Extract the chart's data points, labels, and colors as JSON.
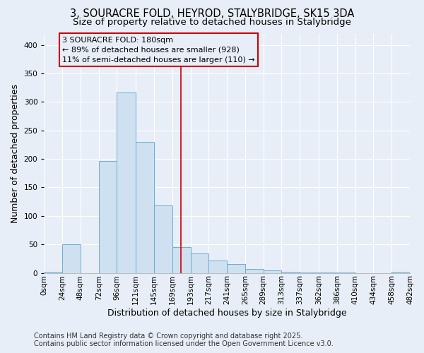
{
  "title": "3, SOURACRE FOLD, HEYROD, STALYBRIDGE, SK15 3DA",
  "subtitle": "Size of property relative to detached houses in Stalybridge",
  "xlabel": "Distribution of detached houses by size in Stalybridge",
  "ylabel": "Number of detached properties",
  "bar_edges": [
    0,
    24,
    48,
    72,
    96,
    121,
    145,
    169,
    193,
    217,
    241,
    265,
    289,
    313,
    337,
    362,
    386,
    410,
    434,
    458,
    482
  ],
  "bar_heights": [
    2,
    50,
    0,
    197,
    317,
    230,
    118,
    45,
    34,
    22,
    15,
    7,
    4,
    2,
    1,
    1,
    1,
    0,
    0,
    2
  ],
  "bar_color": "#cfe0f0",
  "bar_edge_color": "#6aaed6",
  "vline_x": 180,
  "vline_color": "#cc0000",
  "annotation_title": "3 SOURACRE FOLD: 180sqm",
  "annotation_left": "← 89% of detached houses are smaller (928)",
  "annotation_right": "11% of semi-detached houses are larger (110) →",
  "annotation_box_edge_color": "#cc0000",
  "ylim": [
    0,
    420
  ],
  "yticks": [
    0,
    50,
    100,
    150,
    200,
    250,
    300,
    350,
    400
  ],
  "xtick_labels": [
    "0sqm",
    "24sqm",
    "48sqm",
    "72sqm",
    "96sqm",
    "121sqm",
    "145sqm",
    "169sqm",
    "193sqm",
    "217sqm",
    "241sqm",
    "265sqm",
    "289sqm",
    "313sqm",
    "337sqm",
    "362sqm",
    "386sqm",
    "410sqm",
    "434sqm",
    "458sqm",
    "482sqm"
  ],
  "footer_line1": "Contains HM Land Registry data © Crown copyright and database right 2025.",
  "footer_line2": "Contains public sector information licensed under the Open Government Licence v3.0.",
  "background_color": "#e8eef7",
  "grid_color": "#ffffff",
  "title_fontsize": 10.5,
  "subtitle_fontsize": 9.5,
  "axis_label_fontsize": 9,
  "tick_fontsize": 7.5,
  "annotation_fontsize": 8,
  "footer_fontsize": 7
}
